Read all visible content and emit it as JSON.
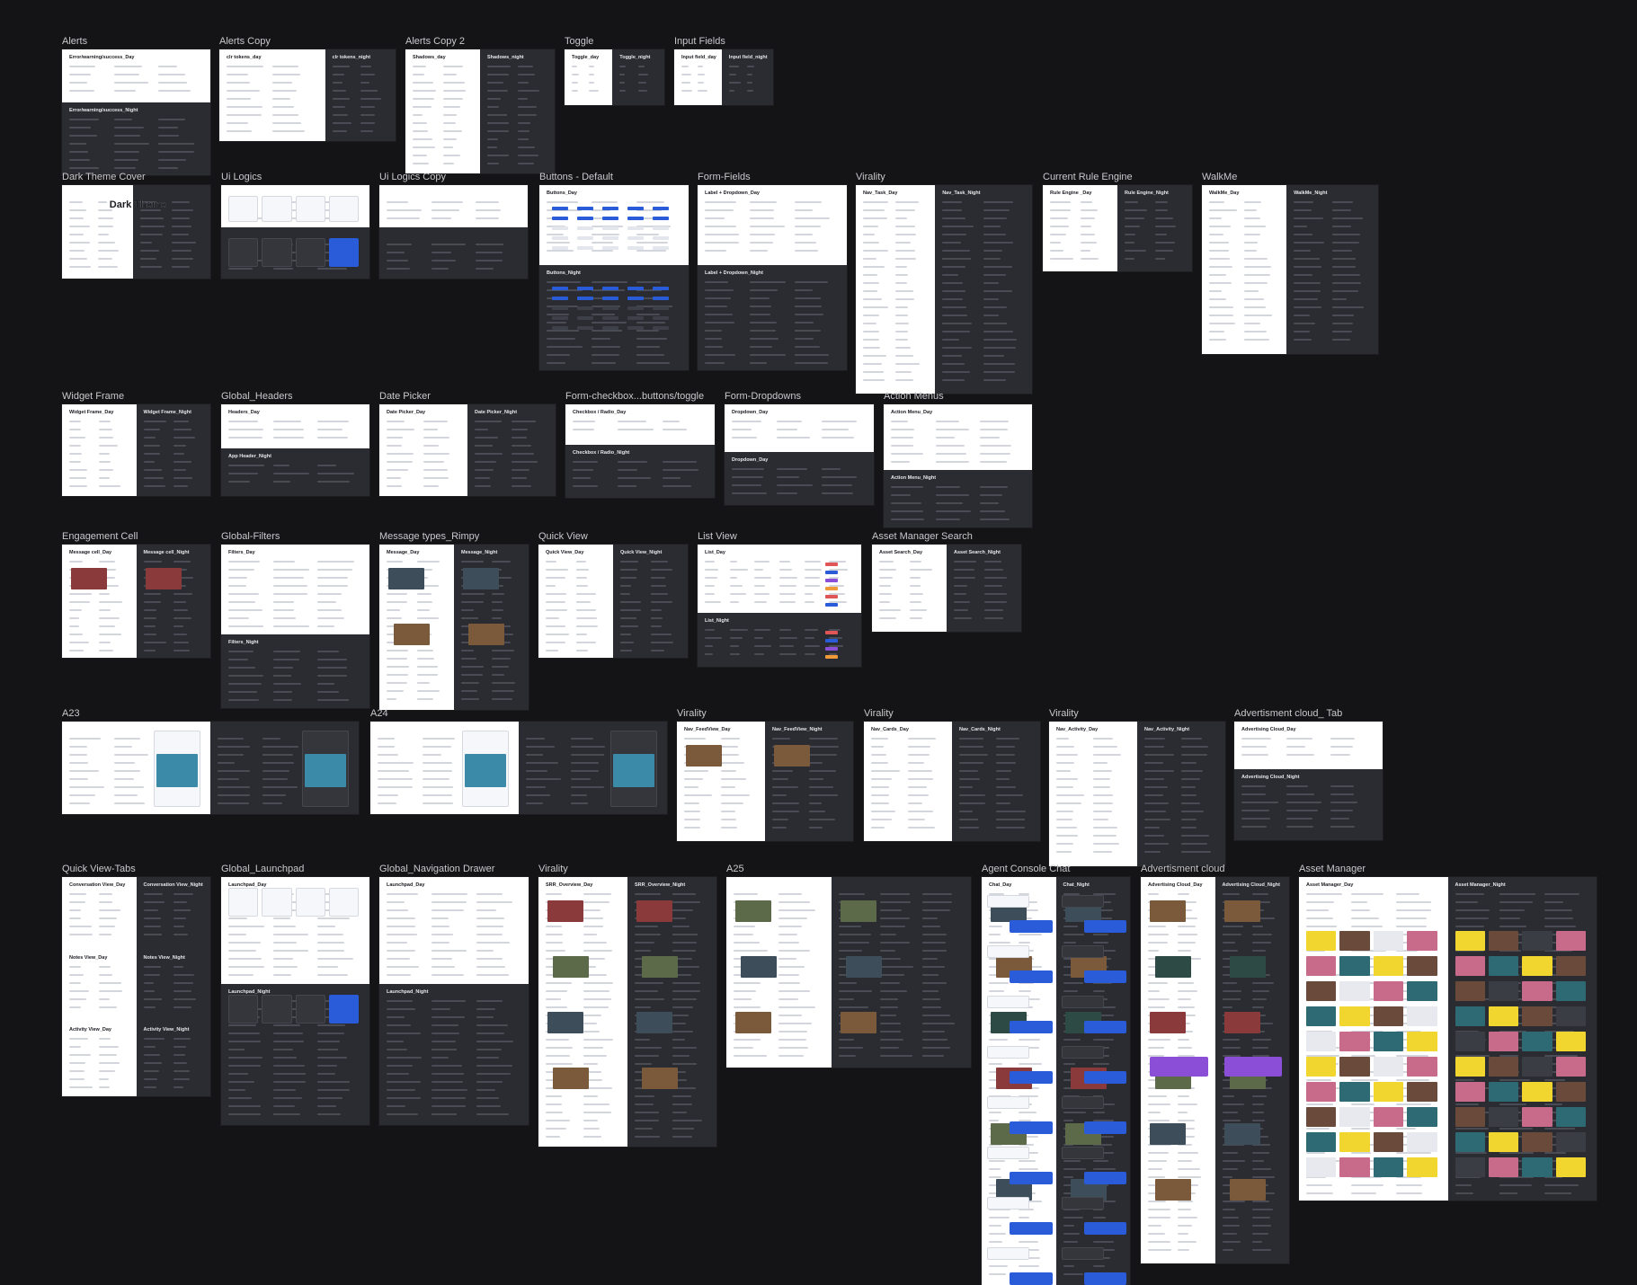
{
  "canvas": {
    "background": "#141416",
    "label_color": "#c9c9cd"
  },
  "colors": {
    "day": "#ffffff",
    "night": "#2b2c31",
    "accent_blue": "#2a5cd9",
    "purple": "#8b4ed6",
    "yellow": "#f2d630",
    "orange": "#f19a38",
    "error_red": "#e05555"
  },
  "frames": [
    {
      "id": "alerts",
      "label": "Alerts",
      "panes": [
        "Error/warning/success_Day",
        "Error/warning/success_Night"
      ]
    },
    {
      "id": "alerts-copy",
      "label": "Alerts Copy",
      "panes": [
        "clr tokens_day",
        "clr tokens_night"
      ]
    },
    {
      "id": "alerts-copy-2",
      "label": "Alerts Copy 2",
      "panes": [
        "Shadows_day",
        "Shadows_night"
      ]
    },
    {
      "id": "toggle",
      "label": "Toggle",
      "panes": [
        "Toggle_day",
        "Toggle_night"
      ]
    },
    {
      "id": "input-fields",
      "label": "Input Fields",
      "panes": [
        "Input field_day",
        "Input field_night"
      ]
    },
    {
      "id": "dark-theme-cover",
      "label": "Dark Theme Cover",
      "panes": [],
      "cover_title": "Dark Theme"
    },
    {
      "id": "ui-logics",
      "label": "Ui Logics",
      "panes": []
    },
    {
      "id": "ui-logics-copy",
      "label": "Ui Logics Copy",
      "panes": []
    },
    {
      "id": "buttons-default",
      "label": "Buttons - Default",
      "panes": [
        "Buttons_Day",
        "Buttons_Night"
      ]
    },
    {
      "id": "form-fields",
      "label": "Form-Fields",
      "panes": [
        "Label + Dropdown_Day",
        "Label + Dropdown_Night"
      ]
    },
    {
      "id": "virality-1",
      "label": "Virality",
      "panes": [
        "Nav_Task_Day",
        "Nav_Task_Night"
      ]
    },
    {
      "id": "current-rule-engine",
      "label": "Current Rule Engine",
      "panes": [
        "Rule Engine _Day",
        "Rule Engine_Night"
      ]
    },
    {
      "id": "walkme",
      "label": "WalkMe",
      "panes": [
        "WalkMe_Day",
        "WalkMe_Night"
      ]
    },
    {
      "id": "widget-frame",
      "label": "Widget Frame",
      "panes": [
        "Widget Frame_Day",
        "Widget Frame_Night"
      ]
    },
    {
      "id": "global-headers",
      "label": "Global_Headers",
      "panes": [
        "Headers_Day",
        "App Header_Night"
      ]
    },
    {
      "id": "date-picker",
      "label": "Date Picker",
      "panes": [
        "Date Picker_Day",
        "Date Picker_Night"
      ]
    },
    {
      "id": "form-checkbox",
      "label": "Form-checkbox...buttons/toggle",
      "panes": [
        "Checkbox / Radio_Day",
        "Checkbox / Radio_Night"
      ]
    },
    {
      "id": "form-dropdowns",
      "label": "Form-Dropdowns",
      "panes": [
        "Dropdown_Day",
        "Dropdown_Day"
      ]
    },
    {
      "id": "action-menus",
      "label": "Action Menus",
      "panes": [
        "Action Menu_Day",
        "Action Menu_Night"
      ]
    },
    {
      "id": "engagement-cell",
      "label": "Engagement Cell",
      "panes": [
        "Message cell_Day",
        "Message cell_Night"
      ]
    },
    {
      "id": "global-filters",
      "label": "Global-Filters",
      "panes": [
        "Filters_Day",
        "Filters_Night"
      ]
    },
    {
      "id": "message-types",
      "label": "Message types_Rimpy",
      "panes": [
        "Message_Day",
        "Message_Night"
      ]
    },
    {
      "id": "quick-view",
      "label": "Quick View",
      "panes": [
        "Quick View_Day",
        "Quick View_Night"
      ]
    },
    {
      "id": "list-view",
      "label": "List View",
      "panes": [
        "List_Day",
        "List_Night"
      ]
    },
    {
      "id": "asset-manager-search",
      "label": "Asset Manager Search",
      "panes": [
        "Asset Search_Day",
        "Asset Search_Night"
      ]
    },
    {
      "id": "a23",
      "label": "A23",
      "panes": []
    },
    {
      "id": "a24",
      "label": "A24",
      "panes": []
    },
    {
      "id": "virality-2",
      "label": "Virality",
      "panes": [
        "Nav_FeedView_Day",
        "Nav_FeedView_Night"
      ]
    },
    {
      "id": "virality-3",
      "label": "Virality",
      "panes": [
        "Nav_Cards_Day",
        "Nav_Cards_Night"
      ]
    },
    {
      "id": "virality-4",
      "label": "Virality",
      "panes": [
        "Nav_Activity_Day",
        "Nav_Activity_Night"
      ]
    },
    {
      "id": "advertisment-cloud-tab",
      "label": "Advertisment cloud_ Tab",
      "panes": [
        "Advertising Cloud_Day",
        "Advertising Cloud_Night"
      ]
    },
    {
      "id": "quick-view-tabs",
      "label": "Quick View-Tabs",
      "panes": [
        "Conversation View_Day",
        "Conversation View_Night",
        "Notes View_Day",
        "Notes View_Night",
        "Activity View_Day",
        "Activity View_Night"
      ]
    },
    {
      "id": "global-launchpad",
      "label": "Global_Launchpad",
      "panes": [
        "Launchpad_Day",
        "Launchpad_Night"
      ]
    },
    {
      "id": "global-nav-drawer",
      "label": "Global_Navigation Drawer",
      "panes": [
        "Launchpad_Day",
        "Launchpad_Night"
      ]
    },
    {
      "id": "virality-5",
      "label": "Virality",
      "panes": [
        "SRR_Overview_Day",
        "SRR_Overview_Night"
      ]
    },
    {
      "id": "a25",
      "label": "A25",
      "panes": []
    },
    {
      "id": "agent-console-chat",
      "label": "Agent Console Chat",
      "panes": [
        "Chat_Day",
        "Chat_Night"
      ]
    },
    {
      "id": "advertisment-cloud",
      "label": "Advertisment cloud",
      "panes": [
        "Advertising Cloud_Day",
        "Advertising Cloud_Night"
      ]
    },
    {
      "id": "asset-manager",
      "label": "Asset Manager",
      "panes": [
        "Asset Manager_Day",
        "Asset Manager_Night"
      ]
    }
  ]
}
